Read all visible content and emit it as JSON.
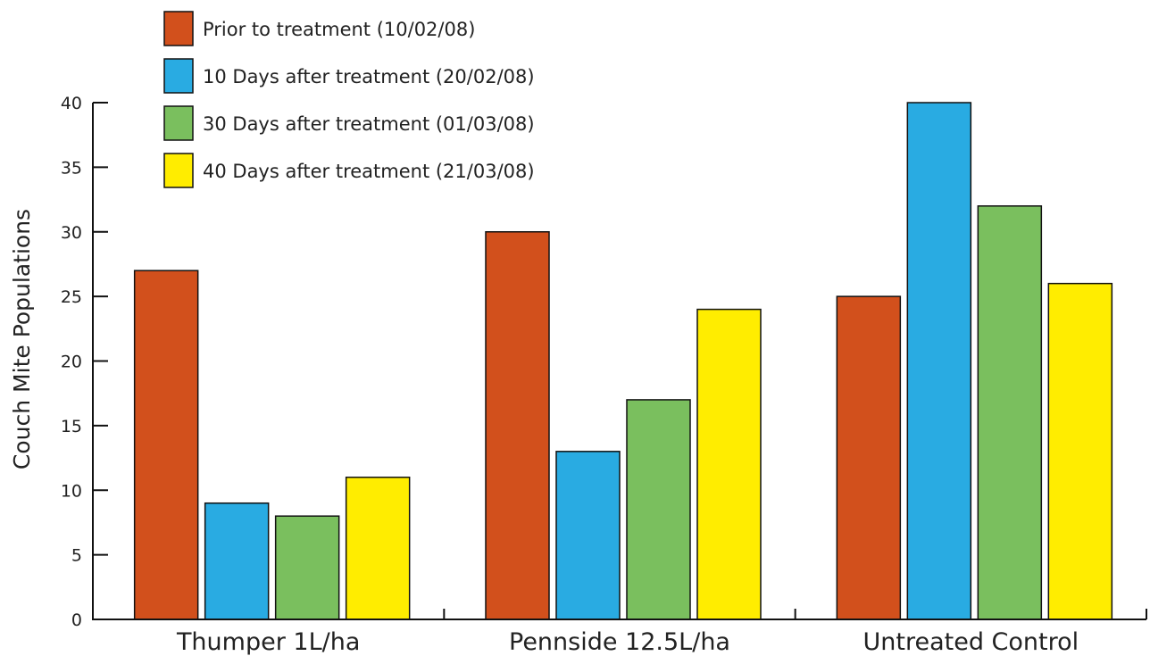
{
  "chart_data": {
    "type": "bar",
    "ylabel": "Couch Mite Populations",
    "xlabel": "",
    "ylim": [
      0,
      40
    ],
    "yticks": [
      0,
      5,
      10,
      15,
      20,
      25,
      30,
      35,
      40
    ],
    "grid": false,
    "legend_position": "top-left",
    "categories": [
      "Thumper 1L/ha",
      "Pennside 12.5L/ha",
      "Untreated Control"
    ],
    "series": [
      {
        "name": "Prior to treatment (10/02/08)",
        "color": "#d2501c",
        "values": [
          27,
          30,
          25
        ]
      },
      {
        "name": "10 Days after treatment (20/02/08)",
        "color": "#29abe2",
        "values": [
          9,
          13,
          40
        ]
      },
      {
        "name": "30 Days after treatment (01/03/08)",
        "color": "#7abf5e",
        "values": [
          8,
          17,
          32
        ]
      },
      {
        "name": "40 Days after treatment (21/03/08)",
        "color": "#ffed00",
        "values": [
          11,
          24,
          26
        ]
      }
    ]
  }
}
